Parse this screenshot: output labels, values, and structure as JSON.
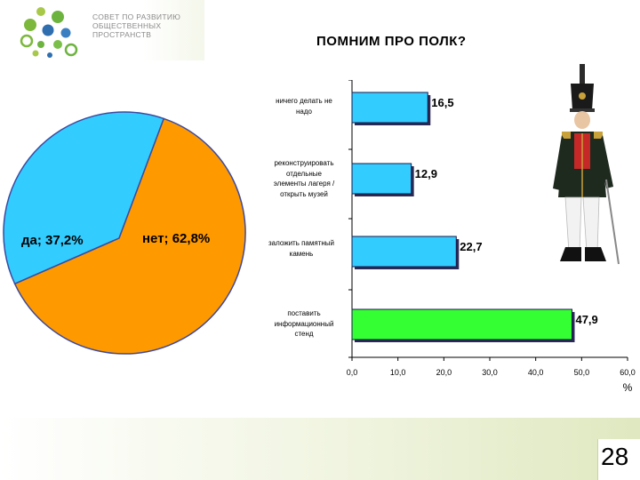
{
  "header": {
    "logo_lines": [
      "СОВЕТ ПО РАЗВИТИЮ",
      "ОБЩЕСТВЕННЫХ",
      "ПРОСТРАНСТВ"
    ],
    "title": "ПОМНИМ ПРО ПОЛК?"
  },
  "footer": {
    "page_number": "28"
  },
  "colors": {
    "pie_yes": "#33ccff",
    "pie_no": "#ff9900",
    "bar": "#33ccff",
    "bar_highlight": "#33ff33",
    "bar_outline": "#1a1a4d"
  },
  "icons": [
    "logo-dots-icon",
    "soldier-illustration"
  ],
  "chart_data": [
    {
      "type": "pie",
      "slices": [
        {
          "label": "да",
          "value": 37.2,
          "display": "да; 37,2%"
        },
        {
          "label": "нет",
          "value": 62.8,
          "display": "нет; 62,8%"
        }
      ]
    },
    {
      "type": "bar",
      "orientation": "horizontal",
      "categories": [
        "ничего делать не надо",
        "реконструировать отдельные элементы лагеря / открыть музей",
        "заложить памятный камень",
        "поставить информационный стенд"
      ],
      "category_lines": [
        [
          "ничего делать не",
          "надо"
        ],
        [
          "реконструировать",
          "отдельные",
          "элементы лагеря /",
          "открыть музей"
        ],
        [
          "заложить памятный",
          "камень"
        ],
        [
          "поставить",
          "информационный",
          "стенд"
        ]
      ],
      "values": [
        16.5,
        12.9,
        22.7,
        47.9
      ],
      "value_labels": [
        "16,5",
        "12,9",
        "22,7",
        "47,9"
      ],
      "highlight_index": 3,
      "xlim": [
        0,
        60
      ],
      "xticks": [
        0,
        10,
        20,
        30,
        40,
        50,
        60
      ],
      "xtick_labels": [
        "0,0",
        "10,0",
        "20,0",
        "30,0",
        "40,0",
        "50,0",
        "60,0"
      ],
      "xlabel": "%",
      "grid": false
    }
  ]
}
